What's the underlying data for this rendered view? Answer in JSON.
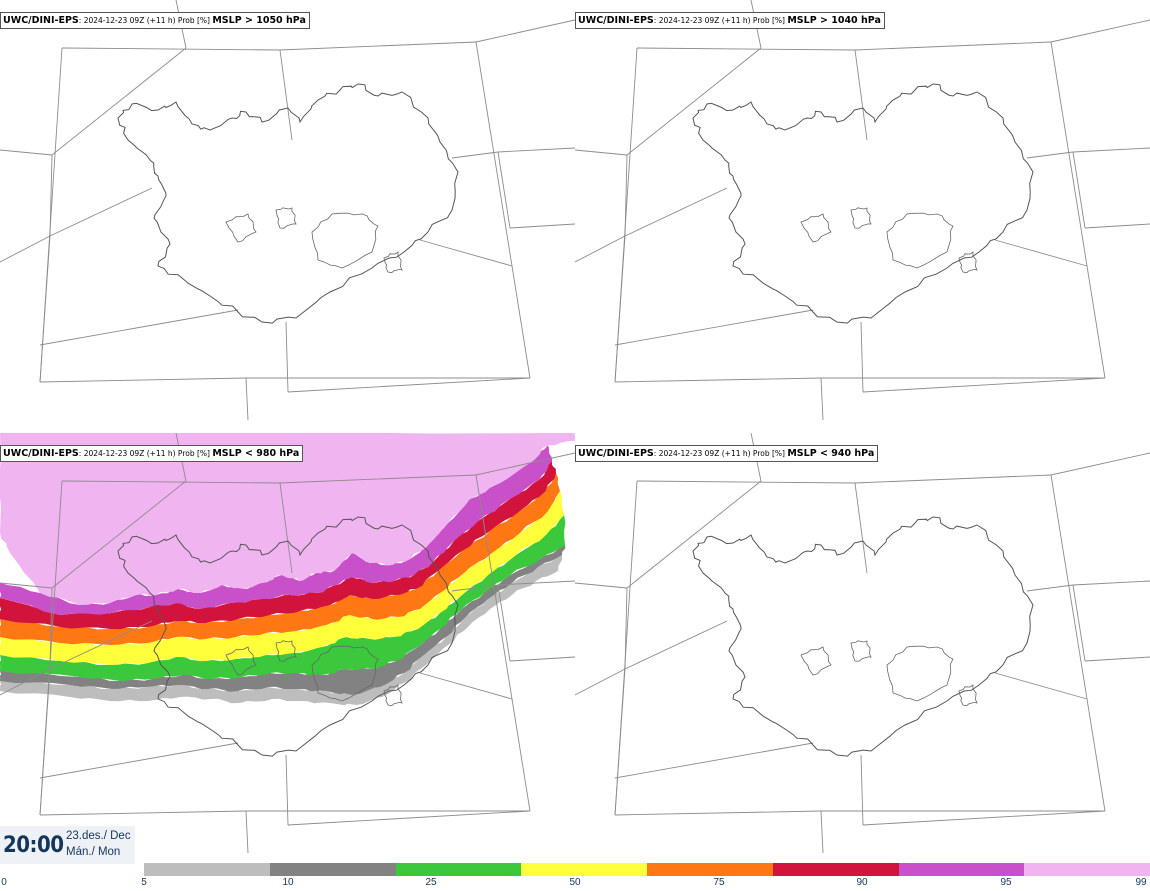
{
  "panels": [
    {
      "model": "UWC/DINI-EPS",
      "meta": ": 2024-12-23 09Z (+11 h) Prob [%] ",
      "field": "MSLP > 1050 hPa",
      "filled": false
    },
    {
      "model": "UWC/DINI-EPS",
      "meta": ": 2024-12-23 09Z (+11 h) Prob [%] ",
      "field": "MSLP > 1040 hPa",
      "filled": false
    },
    {
      "model": "UWC/DINI-EPS",
      "meta": ": 2024-12-23 09Z (+11 h) Prob [%] ",
      "field": "MSLP < 980 hPa",
      "filled": true
    },
    {
      "model": "UWC/DINI-EPS",
      "meta": ": 2024-12-23 09Z (+11 h) Prob [%] ",
      "field": "MSLP < 940 hPa",
      "filled": false
    }
  ],
  "valid_time": {
    "time": "20:00",
    "date": "23.des./ Dec",
    "weekday": "Mán./ Mon"
  },
  "legend": {
    "ticks": [
      "0",
      "5",
      "10",
      "25",
      "50",
      "75",
      "90",
      "95",
      "99"
    ],
    "colors": [
      "#bdbdbd",
      "#828282",
      "#3cc83c",
      "#ffff3c",
      "#ff7814",
      "#d2143c",
      "#c850c8",
      "#f0b4f0"
    ]
  }
}
